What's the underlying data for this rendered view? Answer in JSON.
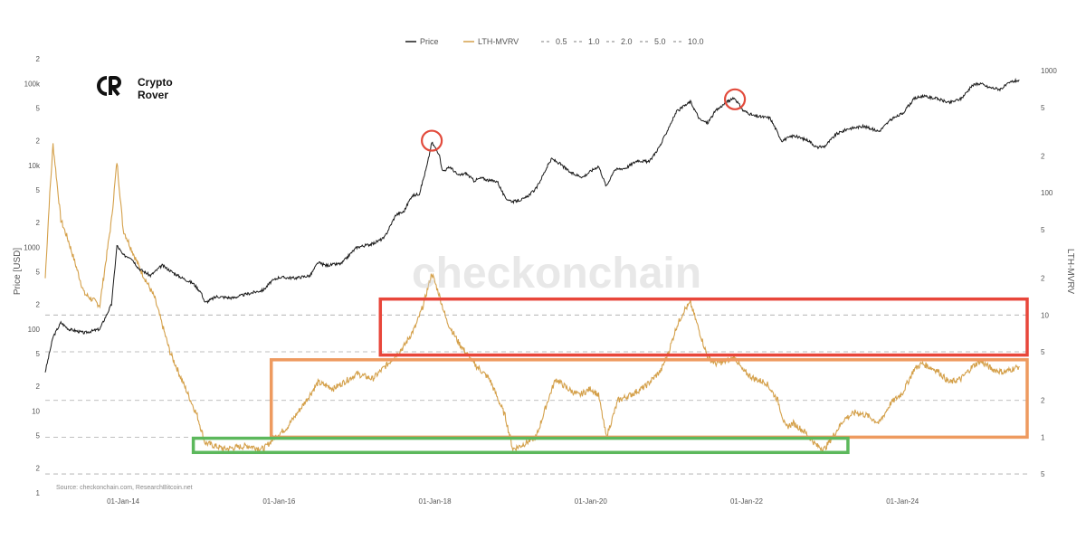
{
  "logo": {
    "line1": "Crypto",
    "line2": "Rover"
  },
  "watermark": "checkonchain",
  "source": "Source: checkonchain.com, ResearchBitcoin.net",
  "chart_data": {
    "type": "line",
    "legend": [
      "Price",
      "LTH-MVRV",
      "0.5",
      "1.0",
      "2.0",
      "5.0",
      "10.0"
    ],
    "legend_position": "top-center",
    "grid": false,
    "left_axis": {
      "label": "Price [USD]",
      "scale": "log",
      "range": [
        1,
        200000
      ],
      "ticks": [
        {
          "v": 1,
          "t": "1"
        },
        {
          "v": 2,
          "t": "2"
        },
        {
          "v": 5,
          "t": "5"
        },
        {
          "v": 10,
          "t": "10"
        },
        {
          "v": 20,
          "t": "2"
        },
        {
          "v": 50,
          "t": "5"
        },
        {
          "v": 100,
          "t": "100"
        },
        {
          "v": 200,
          "t": "2"
        },
        {
          "v": 500,
          "t": "5"
        },
        {
          "v": 1000,
          "t": "1000"
        },
        {
          "v": 2000,
          "t": "2"
        },
        {
          "v": 5000,
          "t": "5"
        },
        {
          "v": 10000,
          "t": "10k"
        },
        {
          "v": 20000,
          "t": "2"
        },
        {
          "v": 50000,
          "t": "5"
        },
        {
          "v": 100000,
          "t": "100k"
        },
        {
          "v": 200000,
          "t": "2"
        }
      ]
    },
    "right_axis": {
      "label": "LTH-MVRV",
      "scale": "log",
      "range": [
        0.35,
        1250
      ],
      "ticks": [
        {
          "v": 0.5,
          "t": "5"
        },
        {
          "v": 1,
          "t": "1"
        },
        {
          "v": 2,
          "t": "2"
        },
        {
          "v": 5,
          "t": "5"
        },
        {
          "v": 10,
          "t": "10"
        },
        {
          "v": 20,
          "t": "2"
        },
        {
          "v": 50,
          "t": "5"
        },
        {
          "v": 100,
          "t": "100"
        },
        {
          "v": 200,
          "t": "2"
        },
        {
          "v": 500,
          "t": "5"
        },
        {
          "v": 1000,
          "t": "1000"
        }
      ]
    },
    "x_axis": {
      "range": [
        2013.0,
        2025.6
      ],
      "ticks": [
        "01-Jan-14",
        "01-Jan-16",
        "01-Jan-18",
        "01-Jan-20",
        "01-Jan-22",
        "01-Jan-24"
      ]
    },
    "reference_lines": [
      0.5,
      1.0,
      2.0,
      5.0,
      10.0
    ],
    "series": [
      {
        "name": "Price",
        "color": "#1a1a1a",
        "points": [
          [
            2013.0,
            30
          ],
          [
            2013.1,
            80
          ],
          [
            2013.2,
            120
          ],
          [
            2013.3,
            100
          ],
          [
            2013.5,
            90
          ],
          [
            2013.7,
            100
          ],
          [
            2013.85,
            200
          ],
          [
            2013.92,
            1050
          ],
          [
            2014.0,
            800
          ],
          [
            2014.1,
            750
          ],
          [
            2014.2,
            550
          ],
          [
            2014.35,
            450
          ],
          [
            2014.5,
            600
          ],
          [
            2014.7,
            450
          ],
          [
            2014.9,
            360
          ],
          [
            2015.0,
            280
          ],
          [
            2015.05,
            210
          ],
          [
            2015.2,
            250
          ],
          [
            2015.4,
            240
          ],
          [
            2015.6,
            270
          ],
          [
            2015.8,
            300
          ],
          [
            2015.9,
            380
          ],
          [
            2016.0,
            430
          ],
          [
            2016.2,
            420
          ],
          [
            2016.4,
            450
          ],
          [
            2016.5,
            650
          ],
          [
            2016.6,
            600
          ],
          [
            2016.8,
            630
          ],
          [
            2016.95,
            900
          ],
          [
            2017.0,
            1000
          ],
          [
            2017.2,
            1100
          ],
          [
            2017.35,
            1300
          ],
          [
            2017.5,
            2500
          ],
          [
            2017.6,
            2700
          ],
          [
            2017.7,
            4200
          ],
          [
            2017.8,
            4500
          ],
          [
            2017.9,
            10000
          ],
          [
            2017.96,
            19000
          ],
          [
            2018.05,
            14000
          ],
          [
            2018.1,
            8500
          ],
          [
            2018.2,
            9500
          ],
          [
            2018.3,
            7500
          ],
          [
            2018.4,
            8000
          ],
          [
            2018.5,
            6500
          ],
          [
            2018.6,
            7000
          ],
          [
            2018.7,
            6500
          ],
          [
            2018.8,
            6400
          ],
          [
            2018.9,
            4000
          ],
          [
            2019.0,
            3600
          ],
          [
            2019.15,
            3900
          ],
          [
            2019.3,
            5200
          ],
          [
            2019.45,
            10000
          ],
          [
            2019.5,
            12000
          ],
          [
            2019.6,
            10500
          ],
          [
            2019.75,
            8000
          ],
          [
            2019.9,
            7200
          ],
          [
            2020.0,
            8500
          ],
          [
            2020.1,
            9800
          ],
          [
            2020.2,
            5500
          ],
          [
            2020.3,
            8800
          ],
          [
            2020.45,
            9300
          ],
          [
            2020.6,
            11500
          ],
          [
            2020.75,
            11000
          ],
          [
            2020.9,
            18000
          ],
          [
            2021.0,
            29000
          ],
          [
            2021.1,
            45000
          ],
          [
            2021.28,
            60000
          ],
          [
            2021.4,
            36000
          ],
          [
            2021.5,
            33000
          ],
          [
            2021.6,
            46000
          ],
          [
            2021.75,
            60000
          ],
          [
            2021.85,
            66000
          ],
          [
            2021.95,
            47000
          ],
          [
            2022.1,
            40000
          ],
          [
            2022.3,
            38000
          ],
          [
            2022.45,
            20000
          ],
          [
            2022.6,
            23000
          ],
          [
            2022.8,
            20000
          ],
          [
            2022.9,
            16500
          ],
          [
            2023.0,
            17000
          ],
          [
            2023.15,
            24000
          ],
          [
            2023.3,
            28000
          ],
          [
            2023.5,
            30000
          ],
          [
            2023.7,
            26000
          ],
          [
            2023.85,
            36000
          ],
          [
            2024.0,
            43000
          ],
          [
            2024.15,
            65000
          ],
          [
            2024.25,
            70000
          ],
          [
            2024.45,
            65000
          ],
          [
            2024.6,
            58000
          ],
          [
            2024.75,
            65000
          ],
          [
            2024.9,
            95000
          ],
          [
            2025.0,
            100000
          ],
          [
            2025.1,
            90000
          ],
          [
            2025.25,
            85000
          ],
          [
            2025.4,
            105000
          ],
          [
            2025.5,
            110000
          ]
        ]
      },
      {
        "name": "LTH-MVRV",
        "color": "#d4a04a",
        "points": [
          [
            2013.0,
            20
          ],
          [
            2013.05,
            80
          ],
          [
            2013.1,
            250
          ],
          [
            2013.2,
            60
          ],
          [
            2013.3,
            40
          ],
          [
            2013.5,
            15
          ],
          [
            2013.7,
            12
          ],
          [
            2013.85,
            60
          ],
          [
            2013.92,
            180
          ],
          [
            2014.0,
            50
          ],
          [
            2014.2,
            25
          ],
          [
            2014.4,
            14
          ],
          [
            2014.6,
            5
          ],
          [
            2014.8,
            2.5
          ],
          [
            2014.95,
            1.5
          ],
          [
            2015.05,
            0.9
          ],
          [
            2015.3,
            0.8
          ],
          [
            2015.6,
            0.85
          ],
          [
            2015.8,
            0.8
          ],
          [
            2015.95,
            1.0
          ],
          [
            2016.1,
            1.2
          ],
          [
            2016.3,
            1.8
          ],
          [
            2016.5,
            2.8
          ],
          [
            2016.7,
            2.5
          ],
          [
            2016.9,
            3.0
          ],
          [
            2017.0,
            3.3
          ],
          [
            2017.2,
            3.0
          ],
          [
            2017.4,
            4.0
          ],
          [
            2017.6,
            5.5
          ],
          [
            2017.75,
            8.0
          ],
          [
            2017.85,
            12
          ],
          [
            2017.96,
            22
          ],
          [
            2018.05,
            15
          ],
          [
            2018.15,
            9
          ],
          [
            2018.3,
            6
          ],
          [
            2018.5,
            4.0
          ],
          [
            2018.7,
            3.0
          ],
          [
            2018.9,
            1.5
          ],
          [
            2019.0,
            0.8
          ],
          [
            2019.1,
            0.85
          ],
          [
            2019.3,
            1.0
          ],
          [
            2019.45,
            2.0
          ],
          [
            2019.55,
            3.0
          ],
          [
            2019.7,
            2.5
          ],
          [
            2019.85,
            2.2
          ],
          [
            2020.0,
            2.5
          ],
          [
            2020.1,
            2.2
          ],
          [
            2020.2,
            1.0
          ],
          [
            2020.35,
            2.0
          ],
          [
            2020.5,
            2.2
          ],
          [
            2020.7,
            2.6
          ],
          [
            2020.9,
            3.5
          ],
          [
            2021.0,
            5.0
          ],
          [
            2021.1,
            8.0
          ],
          [
            2021.2,
            11
          ],
          [
            2021.28,
            12.5
          ],
          [
            2021.35,
            9.0
          ],
          [
            2021.5,
            4.5
          ],
          [
            2021.6,
            4.0
          ],
          [
            2021.75,
            4.2
          ],
          [
            2021.85,
            4.5
          ],
          [
            2021.95,
            3.5
          ],
          [
            2022.1,
            3.0
          ],
          [
            2022.25,
            2.8
          ],
          [
            2022.4,
            2.0
          ],
          [
            2022.5,
            1.2
          ],
          [
            2022.6,
            1.3
          ],
          [
            2022.75,
            1.1
          ],
          [
            2022.9,
            0.85
          ],
          [
            2023.0,
            0.8
          ],
          [
            2023.1,
            1.0
          ],
          [
            2023.25,
            1.4
          ],
          [
            2023.4,
            1.6
          ],
          [
            2023.55,
            1.5
          ],
          [
            2023.7,
            1.3
          ],
          [
            2023.85,
            1.9
          ],
          [
            2024.0,
            2.3
          ],
          [
            2024.15,
            3.6
          ],
          [
            2024.25,
            4.0
          ],
          [
            2024.45,
            3.5
          ],
          [
            2024.6,
            2.8
          ],
          [
            2024.75,
            3.0
          ],
          [
            2024.9,
            3.8
          ],
          [
            2025.0,
            4.2
          ],
          [
            2025.15,
            3.6
          ],
          [
            2025.3,
            3.4
          ],
          [
            2025.5,
            3.8
          ]
        ]
      }
    ],
    "annotations": [
      {
        "type": "circle",
        "color": "#e24a3b",
        "x": 2017.96,
        "price": 20000
      },
      {
        "type": "circle",
        "color": "#e24a3b",
        "x": 2021.85,
        "price": 64000
      },
      {
        "type": "rect",
        "color": "#e8463a",
        "x": [
          2017.3,
          2025.6
        ],
        "mvrv": [
          4.7,
          13.5
        ]
      },
      {
        "type": "rect",
        "color": "#ee9a5f",
        "x": [
          2015.9,
          2025.6
        ],
        "mvrv": [
          1.0,
          4.3
        ]
      },
      {
        "type": "rect",
        "color": "#5cb85c",
        "x": [
          2014.9,
          2023.3
        ],
        "mvrv": [
          0.75,
          0.98
        ]
      }
    ]
  }
}
